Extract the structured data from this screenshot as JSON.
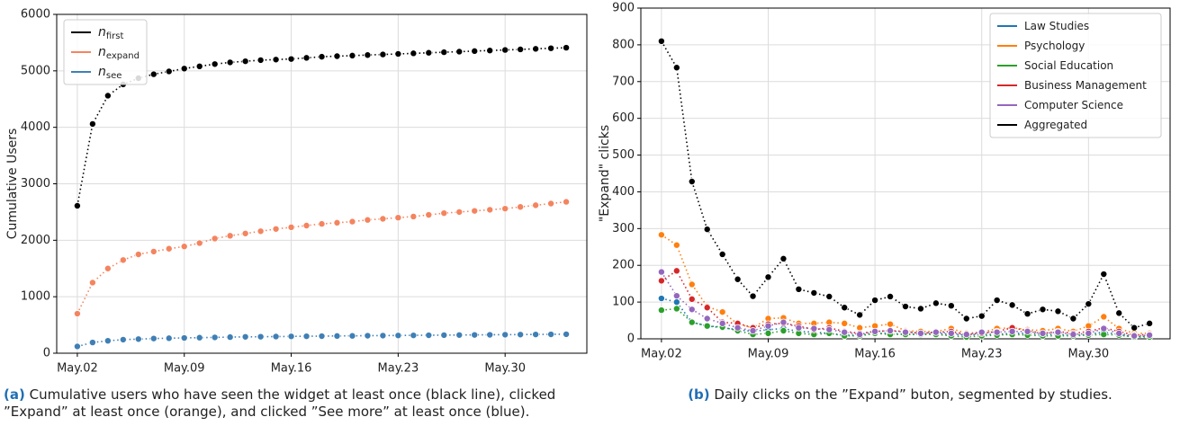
{
  "chart_data": [
    {
      "type": "line",
      "ylabel": "Cumulative Users",
      "categories": [
        "May.02",
        null,
        null,
        null,
        null,
        null,
        null,
        "May.09",
        null,
        null,
        null,
        null,
        null,
        null,
        "May.16",
        null,
        null,
        null,
        null,
        null,
        null,
        "May.23",
        null,
        null,
        null,
        null,
        null,
        null,
        "May.30",
        null,
        null,
        null,
        null
      ],
      "ylim": [
        0,
        6000
      ],
      "yticks": [
        0,
        1000,
        2000,
        3000,
        4000,
        5000,
        6000
      ],
      "grid": true,
      "legend": "upper left",
      "series": [
        {
          "name": "n",
          "name_sub": "first",
          "color": "#000000",
          "values": [
            2610,
            4060,
            4560,
            4760,
            4870,
            4940,
            4990,
            5040,
            5080,
            5120,
            5150,
            5170,
            5190,
            5200,
            5210,
            5230,
            5250,
            5260,
            5270,
            5280,
            5290,
            5300,
            5310,
            5320,
            5330,
            5340,
            5350,
            5360,
            5370,
            5380,
            5390,
            5400,
            5410
          ]
        },
        {
          "name": "n",
          "name_sub": "expand",
          "color": "#f4845f",
          "values": [
            700,
            1250,
            1500,
            1650,
            1750,
            1800,
            1850,
            1890,
            1950,
            2030,
            2080,
            2120,
            2160,
            2200,
            2230,
            2260,
            2290,
            2310,
            2330,
            2360,
            2380,
            2400,
            2420,
            2450,
            2480,
            2500,
            2520,
            2540,
            2560,
            2590,
            2620,
            2650,
            2680
          ]
        },
        {
          "name": "n",
          "name_sub": "see",
          "color": "#3f7fb5",
          "values": [
            120,
            190,
            220,
            240,
            250,
            260,
            265,
            270,
            275,
            280,
            285,
            290,
            292,
            295,
            298,
            300,
            302,
            305,
            307,
            310,
            312,
            314,
            316,
            318,
            320,
            322,
            324,
            326,
            328,
            330,
            332,
            334,
            336
          ]
        }
      ],
      "caption": {
        "label": "(a)",
        "text": "Cumulative users who have seen the widget at least once (black line), clicked ”Expand” at least once (orange), and clicked ”See more” at least once (blue)."
      }
    },
    {
      "type": "line",
      "ylabel": "\"Expand\" clicks",
      "categories": [
        "May.02",
        null,
        null,
        null,
        null,
        null,
        null,
        "May.09",
        null,
        null,
        null,
        null,
        null,
        null,
        "May.16",
        null,
        null,
        null,
        null,
        null,
        null,
        "May.23",
        null,
        null,
        null,
        null,
        null,
        null,
        "May.30",
        null,
        null,
        null,
        null
      ],
      "ylim": [
        0,
        900
      ],
      "yticks": [
        0,
        100,
        200,
        300,
        400,
        500,
        600,
        700,
        800,
        900
      ],
      "grid": true,
      "legend": "upper right",
      "series": [
        {
          "name": "Law Studies",
          "color": "#1f77b4",
          "values": [
            110,
            100,
            45,
            35,
            30,
            25,
            20,
            25,
            28,
            20,
            18,
            15,
            10,
            10,
            15,
            15,
            12,
            12,
            15,
            12,
            10,
            12,
            12,
            15,
            15,
            12,
            12,
            10,
            12,
            18,
            12,
            5,
            8
          ]
        },
        {
          "name": "Psychology",
          "color": "#ff7f0e",
          "values": [
            283,
            255,
            148,
            88,
            73,
            40,
            30,
            55,
            57,
            42,
            42,
            45,
            42,
            30,
            35,
            40,
            22,
            20,
            20,
            28,
            15,
            18,
            28,
            30,
            25,
            22,
            28,
            20,
            35,
            60,
            28,
            15,
            15
          ]
        },
        {
          "name": "Social Education",
          "color": "#2ca02c",
          "values": [
            78,
            82,
            45,
            35,
            32,
            22,
            12,
            15,
            22,
            15,
            12,
            15,
            8,
            8,
            15,
            12,
            12,
            12,
            12,
            8,
            5,
            8,
            10,
            12,
            10,
            8,
            8,
            8,
            10,
            12,
            10,
            5,
            5
          ]
        },
        {
          "name": "Business Management",
          "color": "#d62728",
          "values": [
            158,
            185,
            108,
            85,
            45,
            42,
            30,
            40,
            42,
            35,
            25,
            30,
            20,
            15,
            20,
            22,
            20,
            15,
            18,
            20,
            12,
            15,
            20,
            30,
            22,
            15,
            20,
            15,
            20,
            30,
            20,
            10,
            12
          ]
        },
        {
          "name": "Computer Science",
          "color": "#9467bd",
          "values": [
            182,
            117,
            80,
            55,
            42,
            30,
            22,
            35,
            45,
            30,
            28,
            25,
            18,
            12,
            20,
            22,
            18,
            15,
            18,
            15,
            12,
            18,
            18,
            20,
            20,
            15,
            18,
            12,
            15,
            28,
            15,
            8,
            10
          ]
        },
        {
          "name": "Aggregated",
          "color": "#000000",
          "values": [
            810,
            738,
            428,
            298,
            230,
            162,
            116,
            168,
            218,
            135,
            125,
            115,
            85,
            65,
            105,
            115,
            88,
            82,
            97,
            90,
            55,
            62,
            105,
            92,
            68,
            80,
            75,
            55,
            95,
            176,
            70,
            30,
            42
          ]
        }
      ],
      "caption": {
        "label": "(b)",
        "text": "Daily clicks on the ”Expand” buton, segmented by studies."
      }
    }
  ]
}
